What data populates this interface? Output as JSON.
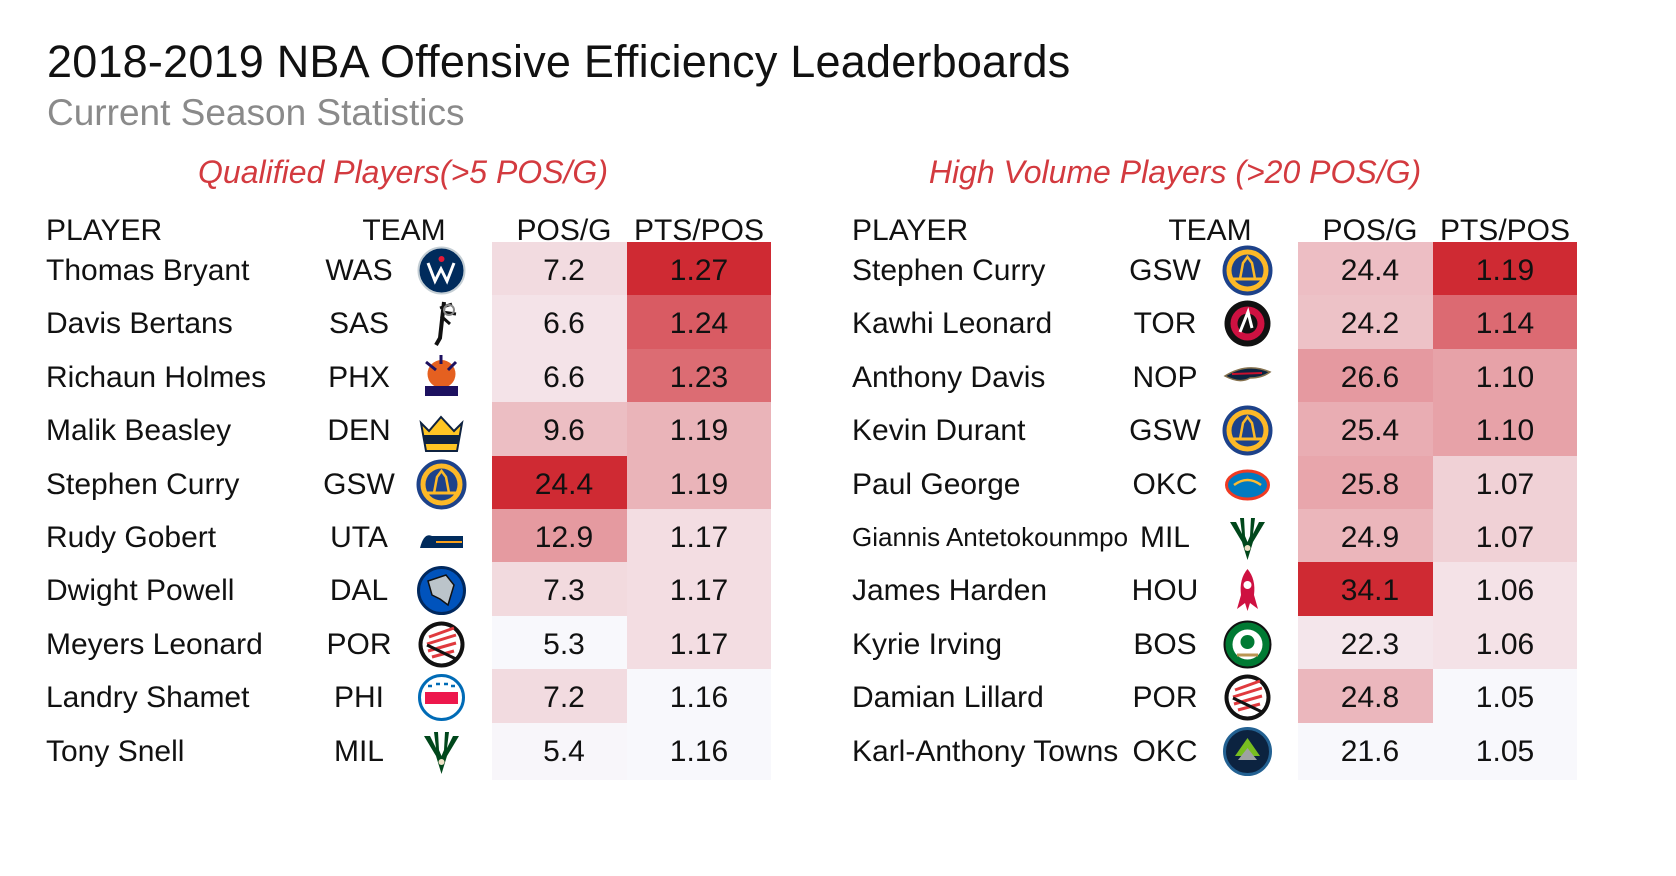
{
  "title": "2018-2019 NBA Offensive Efficiency Leaderboards",
  "subtitle": "Current Season Statistics",
  "colors": {
    "accent": "#d33a3f",
    "subtitle": "#8a8a8a",
    "heat_max": "#cf2a33"
  },
  "chart_data": [
    {
      "type": "table",
      "title": "Qualified Players(>5 POS/G)",
      "columns": [
        "PLAYER",
        "TEAM",
        "POS/G",
        "PTS/POS"
      ],
      "rows": [
        {
          "player": "Thomas Bryant",
          "team": "WAS",
          "logo": "wizards-logo-icon",
          "posg": "7.2",
          "ptspos": "1.27"
        },
        {
          "player": "Davis Bertans",
          "team": "SAS",
          "logo": "spurs-logo-icon",
          "posg": "6.6",
          "ptspos": "1.24"
        },
        {
          "player": "Richaun Holmes",
          "team": "PHX",
          "logo": "suns-logo-icon",
          "posg": "6.6",
          "ptspos": "1.23"
        },
        {
          "player": "Malik Beasley",
          "team": "DEN",
          "logo": "nuggets-logo-icon",
          "posg": "9.6",
          "ptspos": "1.19"
        },
        {
          "player": "Stephen Curry",
          "team": "GSW",
          "logo": "warriors-logo-icon",
          "posg": "24.4",
          "ptspos": "1.19"
        },
        {
          "player": "Rudy Gobert",
          "team": "UTA",
          "logo": "jazz-logo-icon",
          "posg": "12.9",
          "ptspos": "1.17"
        },
        {
          "player": "Dwight  Powell",
          "team": "DAL",
          "logo": "mavericks-logo-icon",
          "posg": "7.3",
          "ptspos": "1.17"
        },
        {
          "player": "Meyers Leonard",
          "team": "POR",
          "logo": "blazers-logo-icon",
          "posg": "5.3",
          "ptspos": "1.17"
        },
        {
          "player": "Landry Shamet",
          "team": "PHI",
          "logo": "76ers-logo-icon",
          "posg": "7.2",
          "ptspos": "1.16"
        },
        {
          "player": "Tony Snell",
          "team": "MIL",
          "logo": "bucks-logo-icon",
          "posg": "5.4",
          "ptspos": "1.16"
        }
      ]
    },
    {
      "type": "table",
      "title": "High Volume Players (>20 POS/G)",
      "columns": [
        "PLAYER",
        "TEAM",
        "POS/G",
        "PTS/POS"
      ],
      "rows": [
        {
          "player": "Stephen Curry",
          "team": "GSW",
          "logo": "warriors-logo-icon",
          "posg": "24.4",
          "ptspos": "1.19"
        },
        {
          "player": "Kawhi Leonard",
          "team": "TOR",
          "logo": "raptors-logo-icon",
          "posg": "24.2",
          "ptspos": "1.14"
        },
        {
          "player": "Anthony Davis",
          "team": "NOP",
          "logo": "pelicans-logo-icon",
          "posg": "26.6",
          "ptspos": "1.10"
        },
        {
          "player": "Kevin Durant",
          "team": "GSW",
          "logo": "warriors-logo-icon",
          "posg": "25.4",
          "ptspos": "1.10"
        },
        {
          "player": "Paul George",
          "team": "OKC",
          "logo": "thunder-logo-icon",
          "posg": "25.8",
          "ptspos": "1.07"
        },
        {
          "player": "Giannis Antetokounmpo",
          "team": "MIL",
          "logo": "bucks-logo-icon",
          "posg": "24.9",
          "ptspos": "1.07"
        },
        {
          "player": "James Harden",
          "team": "HOU",
          "logo": "rockets-logo-icon",
          "posg": "34.1",
          "ptspos": "1.06"
        },
        {
          "player": "Kyrie Irving",
          "team": "BOS",
          "logo": "celtics-logo-icon",
          "posg": "22.3",
          "ptspos": "1.06"
        },
        {
          "player": "Damian Lillard",
          "team": "POR",
          "logo": "blazers-logo-icon",
          "posg": "24.8",
          "ptspos": "1.05"
        },
        {
          "player": "Karl-Anthony Towns",
          "team": "OKC",
          "logo": "timberwolves-logo-icon",
          "posg": "21.6",
          "ptspos": "1.05"
        }
      ]
    }
  ]
}
